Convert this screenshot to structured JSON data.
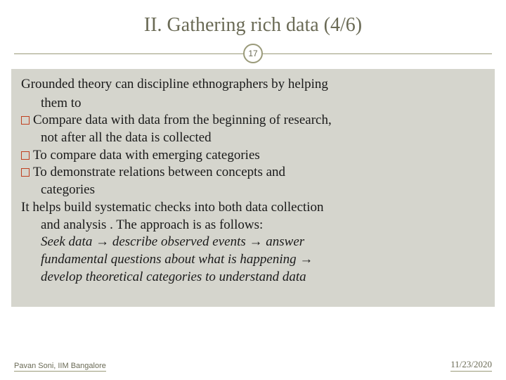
{
  "title": "II.  Gathering rich data (4/6)",
  "page_number": "17",
  "intro_line1": "Grounded theory can discipline ethnographers by helping",
  "intro_line2": "them to",
  "bullets": [
    {
      "line1": "Compare data with data from the beginning of research,",
      "line2": "not after all the data is collected"
    },
    {
      "line1": "To compare data with emerging categories",
      "line2": ""
    },
    {
      "line1": "To demonstrate relations between concepts and",
      "line2": "categories"
    }
  ],
  "post1": "It helps build systematic checks into both data collection",
  "post2": "and analysis . The approach is as follows:",
  "flow1": "Seek data → describe observed events → answer",
  "flow2": "fundamental questions about what is happening →",
  "flow3": "develop theoretical categories to understand data",
  "footer_left": "Pavan Soni, IIM Bangalore",
  "footer_right": "11/23/2020",
  "colors": {
    "title": "#6a6a55",
    "accent_line": "#9a9a7a",
    "box_bg": "#d5d5cd",
    "bullet_border": "#c04020",
    "body_text": "#1a1a1a"
  }
}
